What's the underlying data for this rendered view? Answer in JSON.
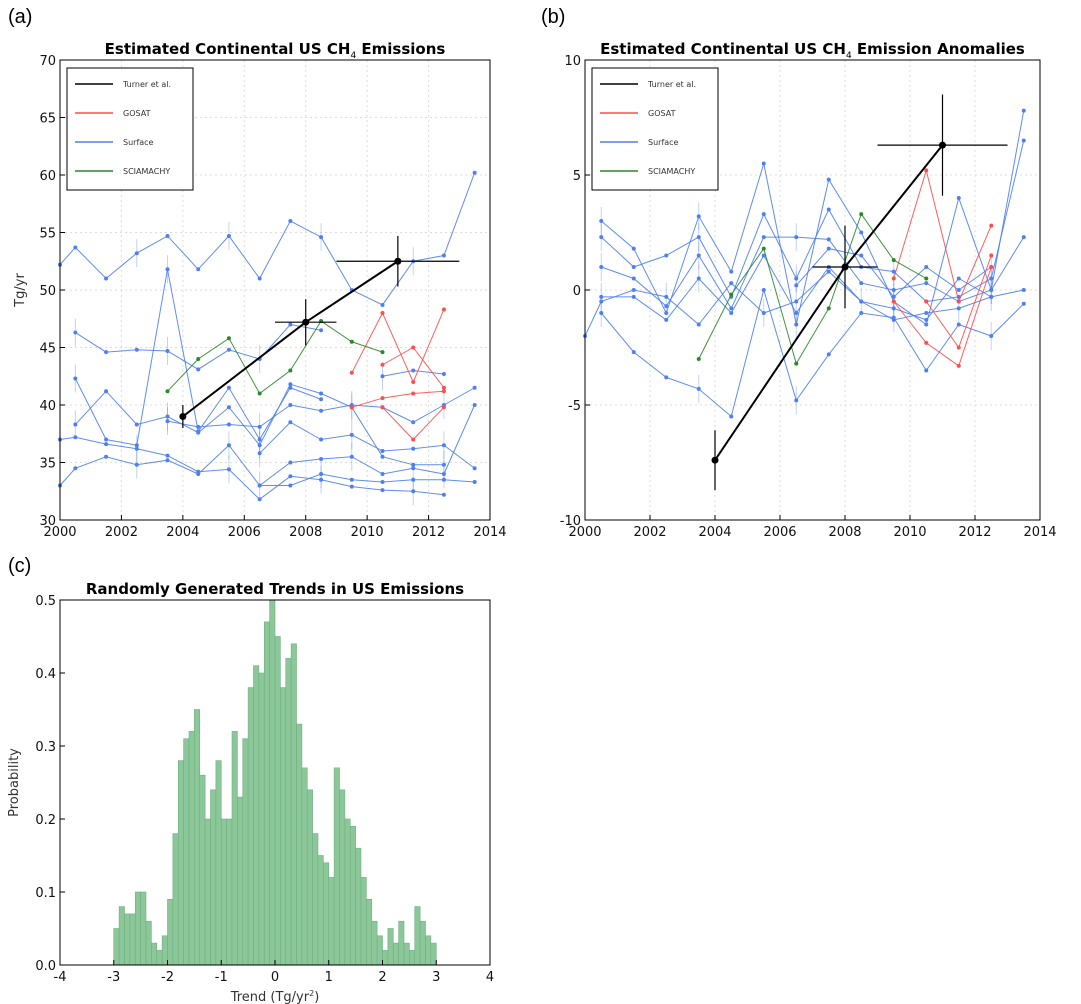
{
  "panels": {
    "a": "(a)",
    "b": "(b)",
    "c": "(c)"
  },
  "colors": {
    "turner": "#000000",
    "gosat": "#ff4d4d",
    "surface": "#4f7ff0",
    "sciamachy": "#2a8a2a",
    "hist": "#8cc79a",
    "grid": "#dddddd"
  },
  "chart_data": [
    {
      "type": "line",
      "title_main": "Estimated Continental US CH",
      "title_sub": "4",
      "title_tail": " Emissions",
      "xlabel": "",
      "ylabel": "Tg/yr",
      "xlim": [
        2000,
        2014
      ],
      "ylim": [
        30,
        70
      ],
      "xticks": [
        2000,
        2002,
        2004,
        2006,
        2008,
        2010,
        2012,
        2014
      ],
      "yticks": [
        30,
        35,
        40,
        45,
        50,
        55,
        60,
        65,
        70
      ],
      "legend": [
        "Turner et al.",
        "GOSAT",
        "Surface",
        "SCIAMACHY"
      ],
      "legend_position": "top-left",
      "grid": true,
      "series": [
        {
          "name": "Surface",
          "color": "surface",
          "x": [
            2000,
            2000.5,
            2001.5,
            2002.5,
            2003.5,
            2004.5,
            2005.5,
            2006.5,
            2007.5,
            2008.5,
            2009.5,
            2010.5,
            2011.5,
            2012.5,
            2013.5
          ],
          "y": [
            52.2,
            53.7,
            51.0,
            53.2,
            54.7,
            51.8,
            54.7,
            51.0,
            56.0,
            54.6,
            50.0,
            48.7,
            52.5,
            53.0,
            60.2
          ]
        },
        {
          "name": "Surface",
          "color": "surface",
          "x": [
            2000.5,
            2001.5,
            2002.5,
            2003.5,
            2004.5,
            2005.5,
            2006.5,
            2007.5,
            2008.5
          ],
          "y": [
            46.3,
            44.6,
            44.8,
            44.7,
            43.1,
            44.8,
            44.0,
            47.0,
            46.5
          ]
        },
        {
          "name": "Surface",
          "color": "surface",
          "x": [
            2000.5,
            2001.5,
            2002.5,
            2003.5,
            2004.5,
            2005.5,
            2006.5,
            2007.5,
            2008.5
          ],
          "y": [
            42.3,
            37.0,
            36.5,
            51.8,
            37.7,
            41.5,
            37.0,
            41.5,
            40.5
          ]
        },
        {
          "name": "Surface",
          "color": "surface",
          "x": [
            2000.5,
            2001.5,
            2002.5,
            2003.5,
            2004.5,
            2005.5,
            2006.5,
            2007.5,
            2008.5,
            2009.5,
            2010.5,
            2011.5,
            2012.5
          ],
          "y": [
            38.3,
            41.2,
            38.3,
            39.0,
            37.6,
            39.8,
            36.5,
            41.8,
            41.0,
            39.8,
            35.5,
            34.8,
            34.8
          ]
        },
        {
          "name": "Surface",
          "color": "surface",
          "x": [
            2000,
            2000.5,
            2001.5,
            2002.5,
            2003.5,
            2004.5,
            2005.5,
            2006.5,
            2007.5,
            2008.5,
            2009.5,
            2010.5,
            2011.5,
            2012.5
          ],
          "y": [
            37.0,
            37.2,
            36.6,
            36.2,
            35.6,
            34.2,
            34.4,
            31.8,
            33.8,
            33.5,
            32.9,
            32.6,
            32.5,
            32.2
          ]
        },
        {
          "name": "Surface",
          "color": "surface",
          "x": [
            2000,
            2000.5,
            2001.5,
            2002.5,
            2003.5,
            2004.5,
            2005.5,
            2006.5,
            2007.5,
            2008.5,
            2009.5,
            2010.5,
            2011.5,
            2012.5,
            2013.5
          ],
          "y": [
            33.0,
            34.5,
            35.5,
            34.8,
            35.2,
            34.0,
            36.5,
            33.0,
            33.0,
            34.0,
            33.5,
            33.3,
            33.5,
            33.5,
            33.3
          ]
        },
        {
          "name": "Surface",
          "color": "surface",
          "x": [
            2006.5,
            2007.5,
            2008.5,
            2009.5,
            2010.5,
            2011.5,
            2012.5,
            2013.5
          ],
          "y": [
            35.8,
            38.5,
            37.0,
            37.4,
            36.0,
            36.2,
            36.5,
            34.5
          ]
        },
        {
          "name": "Surface",
          "color": "surface",
          "x": [
            2003.5,
            2004.5,
            2005.5,
            2006.5,
            2007.5,
            2008.5,
            2009.5,
            2010.5,
            2011.5,
            2012.5,
            2013.5
          ],
          "y": [
            38.6,
            38.1,
            38.3,
            38.1,
            40.0,
            39.5,
            40.0,
            39.8,
            38.5,
            40.0,
            41.5
          ]
        },
        {
          "name": "Surface",
          "color": "surface",
          "x": [
            2006.5,
            2007.5,
            2008.5,
            2009.5,
            2010.5,
            2011.5,
            2012.5,
            2013.5
          ],
          "y": [
            33.0,
            35.0,
            35.3,
            35.5,
            34.0,
            34.5,
            34.0,
            40.0
          ]
        },
        {
          "name": "Surface",
          "color": "surface",
          "x": [
            2010.5,
            2011.5,
            2012.5
          ],
          "y": [
            42.5,
            43.0,
            42.7
          ]
        },
        {
          "name": "GOSAT",
          "color": "gosat",
          "x": [
            2009.5,
            2010.5,
            2011.5,
            2012.5
          ],
          "y": [
            42.8,
            48.0,
            42.0,
            48.3
          ]
        },
        {
          "name": "GOSAT",
          "color": "gosat",
          "x": [
            2009.5,
            2010.5,
            2011.5,
            2012.5
          ],
          "y": [
            39.8,
            40.6,
            41.0,
            41.2
          ]
        },
        {
          "name": "GOSAT",
          "color": "gosat",
          "x": [
            2010.5,
            2011.5,
            2012.5
          ],
          "y": [
            39.8,
            37.0,
            39.8
          ]
        },
        {
          "name": "GOSAT",
          "color": "gosat",
          "x": [
            2010.5,
            2011.5,
            2012.5
          ],
          "y": [
            43.5,
            45.0,
            41.5
          ]
        },
        {
          "name": "SCIAMACHY",
          "color": "sciamachy",
          "x": [
            2003.5,
            2004.5,
            2005.5,
            2006.5,
            2007.5,
            2008.5,
            2009.5,
            2010.5
          ],
          "y": [
            41.2,
            44.0,
            45.8,
            41.0,
            43.0,
            47.3,
            45.5,
            44.6
          ]
        }
      ],
      "turner": {
        "x": [
          2004,
          2008,
          2011
        ],
        "y": [
          39.0,
          47.2,
          52.5
        ],
        "xerr": [
          0,
          1,
          2
        ],
        "yerr": [
          1.0,
          2.0,
          2.2
        ]
      }
    },
    {
      "type": "line",
      "title_main": "Estimated Continental US CH",
      "title_sub": "4",
      "title_tail": " Emission Anomalies",
      "xlabel": "",
      "ylabel": "",
      "xlim": [
        2000,
        2014
      ],
      "ylim": [
        -10,
        10
      ],
      "xticks": [
        2000,
        2002,
        2004,
        2006,
        2008,
        2010,
        2012,
        2014
      ],
      "yticks": [
        -10,
        -5,
        0,
        5,
        10
      ],
      "legend": [
        "Turner et al.",
        "GOSAT",
        "Surface",
        "SCIAMACHY"
      ],
      "legend_position": "top-left",
      "grid": true,
      "series": [
        {
          "name": "Surface",
          "color": "surface",
          "x": [
            2000.5,
            2001.5,
            2002.5,
            2003.5,
            2004.5,
            2005.5,
            2006.5,
            2007.5,
            2008.5,
            2009.5,
            2010.5,
            2011.5,
            2012.5,
            2013.5
          ],
          "y": [
            3.0,
            1.8,
            -1.0,
            3.2,
            0.8,
            5.5,
            -1.5,
            4.8,
            2.5,
            -0.5,
            -1.5,
            4.0,
            0.0,
            7.8
          ]
        },
        {
          "name": "Surface",
          "color": "surface",
          "x": [
            2000.5,
            2001.5,
            2002.5,
            2003.5,
            2004.5,
            2005.5,
            2006.5,
            2007.5,
            2008.5,
            2009.5,
            2010.5,
            2011.5,
            2012.5,
            2013.5
          ],
          "y": [
            2.3,
            1.0,
            1.5,
            2.3,
            -0.3,
            3.3,
            0.5,
            3.5,
            1.0,
            0.8,
            -0.5,
            -0.3,
            0.5,
            6.5
          ]
        },
        {
          "name": "Surface",
          "color": "surface",
          "x": [
            2000.5,
            2001.5,
            2002.5,
            2003.5,
            2004.5,
            2005.5,
            2006.5,
            2007.5,
            2008.5,
            2009.5,
            2010.5,
            2011.5,
            2012.5,
            2013.5
          ],
          "y": [
            1.0,
            0.5,
            -0.7,
            1.5,
            -0.8,
            2.3,
            2.3,
            2.2,
            0.3,
            0.0,
            0.3,
            -0.5,
            0.0,
            2.3
          ]
        },
        {
          "name": "Surface",
          "color": "surface",
          "x": [
            2000.5,
            2001.5,
            2002.5,
            2003.5,
            2004.5,
            2005.5,
            2006.5,
            2007.5,
            2008.5,
            2009.5,
            2010.5,
            2011.5,
            2012.5,
            2013.5
          ],
          "y": [
            -0.3,
            -0.3,
            -1.3,
            0.5,
            -1.0,
            1.5,
            -1.0,
            1.0,
            -0.5,
            -0.8,
            -1.3,
            0.5,
            -0.3,
            0.0
          ]
        },
        {
          "name": "Surface",
          "color": "surface",
          "x": [
            2000.5,
            2001.5,
            2002.5,
            2003.5,
            2004.5,
            2005.5,
            2006.5,
            2007.5,
            2008.5,
            2009.5,
            2010.5,
            2011.5,
            2012.5,
            2013.5
          ],
          "y": [
            -1.0,
            -2.7,
            -3.8,
            -4.3,
            -5.5,
            0.0,
            -4.8,
            -2.8,
            -1.0,
            -1.2,
            -3.5,
            -1.5,
            -2.0,
            -0.6
          ]
        },
        {
          "name": "Surface",
          "color": "surface",
          "x": [
            2000,
            2000.5,
            2001.5,
            2002.5,
            2003.5,
            2004.5,
            2005.5,
            2006.5,
            2007.5,
            2008.5,
            2009.5,
            2010.5,
            2011.5,
            2012.5
          ],
          "y": [
            -2.0,
            -0.5,
            0.0,
            -0.3,
            -1.5,
            0.3,
            -1.0,
            -0.5,
            0.8,
            -0.5,
            -1.3,
            -1.0,
            -0.8,
            -0.3
          ]
        },
        {
          "name": "Surface",
          "color": "surface",
          "x": [
            2006.5,
            2007.5,
            2008.5,
            2009.5,
            2010.5,
            2011.5,
            2012.5
          ],
          "y": [
            0.2,
            1.8,
            1.5,
            -0.3,
            1.0,
            0.0,
            1.0
          ]
        },
        {
          "name": "GOSAT",
          "color": "gosat",
          "x": [
            2009.5,
            2010.5,
            2011.5,
            2012.5
          ],
          "y": [
            0.5,
            5.2,
            -0.5,
            2.8
          ]
        },
        {
          "name": "GOSAT",
          "color": "gosat",
          "x": [
            2009.5,
            2010.5,
            2011.5,
            2012.5
          ],
          "y": [
            -0.5,
            -2.3,
            -3.3,
            1.0
          ]
        },
        {
          "name": "GOSAT",
          "color": "gosat",
          "x": [
            2010.5,
            2011.5,
            2012.5
          ],
          "y": [
            -0.5,
            -2.5,
            1.5
          ]
        },
        {
          "name": "SCIAMACHY",
          "color": "sciamachy",
          "x": [
            2003.5,
            2004.5,
            2005.5,
            2006.5,
            2007.5,
            2008.5,
            2009.5,
            2010.5
          ],
          "y": [
            -3.0,
            -0.2,
            1.8,
            -3.2,
            -0.8,
            3.3,
            1.3,
            0.5
          ]
        }
      ],
      "turner": {
        "x": [
          2004,
          2008,
          2011
        ],
        "y": [
          -7.4,
          1.0,
          6.3
        ],
        "xerr": [
          0,
          1,
          2
        ],
        "yerr": [
          1.3,
          1.8,
          2.2
        ]
      }
    },
    {
      "type": "bar",
      "title": "Randomly Generated Trends in US Emissions",
      "xlabel": "Trend (Tg/yr",
      "xlabel_sup": "2",
      "xlabel_tail": ")",
      "ylabel": "Probability",
      "xlim": [
        -4,
        4
      ],
      "ylim": [
        0,
        0.5
      ],
      "xticks": [
        -4,
        -3,
        -2,
        -1,
        0,
        1,
        2,
        3,
        4
      ],
      "yticks": [
        0.0,
        0.1,
        0.2,
        0.3,
        0.4,
        0.5
      ],
      "bin_start": -3.0,
      "bin_width": 0.1,
      "values": [
        0.05,
        0.08,
        0.07,
        0.07,
        0.1,
        0.1,
        0.06,
        0.03,
        0.02,
        0.04,
        0.09,
        0.18,
        0.28,
        0.31,
        0.32,
        0.35,
        0.26,
        0.2,
        0.24,
        0.28,
        0.2,
        0.2,
        0.32,
        0.23,
        0.31,
        0.38,
        0.41,
        0.4,
        0.47,
        0.5,
        0.45,
        0.38,
        0.42,
        0.44,
        0.33,
        0.27,
        0.24,
        0.18,
        0.15,
        0.14,
        0.12,
        0.27,
        0.24,
        0.2,
        0.19,
        0.16,
        0.12,
        0.09,
        0.06,
        0.04,
        0.02,
        0.05,
        0.03,
        0.06,
        0.03,
        0.02,
        0.08,
        0.06,
        0.04,
        0.03
      ]
    }
  ]
}
